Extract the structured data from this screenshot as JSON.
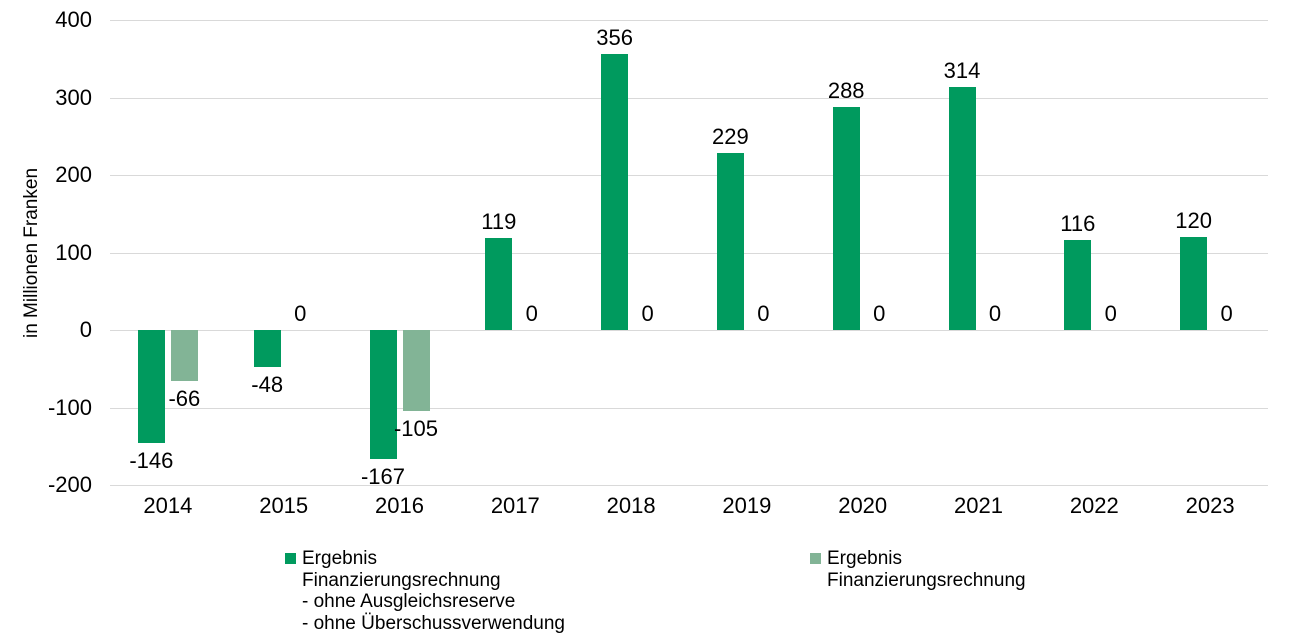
{
  "chart_data": {
    "type": "bar",
    "title": "",
    "ylabel": "in Millionen Franken",
    "xlabel": "",
    "ylim": [
      -200,
      400
    ],
    "yticks": [
      400,
      300,
      200,
      100,
      0,
      -100,
      -200
    ],
    "grid": true,
    "legend_position": "bottom",
    "value_labels": true,
    "categories": [
      "2014",
      "2015",
      "2016",
      "2017",
      "2018",
      "2019",
      "2020",
      "2021",
      "2022",
      "2023"
    ],
    "series": [
      {
        "name": "Ergebnis Finanzierungsrechnung - ohne Ausgleichsreserve - ohne Überschussverwendung",
        "legend_lines": [
          "Ergebnis",
          "Finanzierungsrechnung",
          "- ohne Ausgleichsreserve",
          "- ohne Überschussverwendung"
        ],
        "color": "#009a5e",
        "values": [
          -146,
          -48,
          -167,
          119,
          356,
          229,
          288,
          314,
          116,
          120
        ]
      },
      {
        "name": "Ergebnis Finanzierungsrechnung",
        "legend_lines": [
          "Ergebnis",
          "Finanzierungsrechnung"
        ],
        "color": "#82b496",
        "values": [
          -66,
          0,
          -105,
          0,
          0,
          0,
          0,
          0,
          0,
          0
        ]
      }
    ],
    "colors": {
      "gridline": "#d9d9d9",
      "text": "#000000",
      "background": "#ffffff"
    }
  }
}
